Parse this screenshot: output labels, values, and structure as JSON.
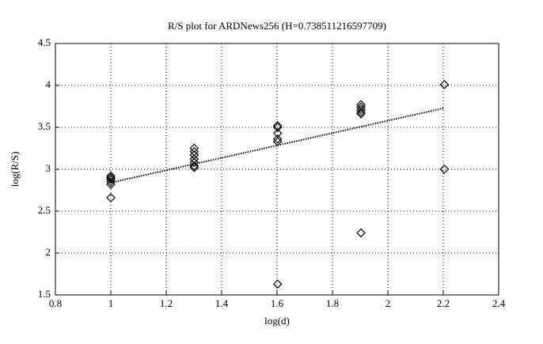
{
  "chart_data": {
    "type": "scatter",
    "title": "R/S plot for ARDNews256 (H=0.738511216597709)",
    "x_label": "log(d)",
    "y_label": "log(R/S)",
    "xlim": [
      0.8,
      2.4
    ],
    "xticks": [
      0.8,
      1,
      1.2,
      1.4,
      1.6,
      1.8,
      2,
      2.2,
      2.4
    ],
    "ylim": [
      1.5,
      4.5
    ],
    "yticks": [
      1.5,
      2,
      2.5,
      3,
      3.5,
      4,
      4.5
    ],
    "grid": true,
    "series": [
      {
        "type": "scatter",
        "color": "#000000",
        "x": [
          1,
          1,
          1,
          1,
          1,
          1,
          1.301,
          1.301,
          1.301,
          1.301,
          1.301,
          1.301,
          1.301,
          1.602,
          1.602,
          1.602,
          1.602,
          1.602,
          1.602,
          1.903,
          1.903,
          1.903,
          1.903,
          1.903,
          1.903,
          2.204,
          2.204
        ],
        "values": [
          2.92,
          2.9,
          2.88,
          2.85,
          2.82,
          2.66,
          3.25,
          3.21,
          3.17,
          3.12,
          3.08,
          3.04,
          3.02,
          3.52,
          3.5,
          3.43,
          3.36,
          3.33,
          1.63,
          3.77,
          3.74,
          3.71,
          3.68,
          3.66,
          2.24,
          4.01,
          3.0
        ]
      },
      {
        "type": "line",
        "color": "#000000",
        "x": [
          1,
          2.204
        ],
        "values": [
          2.84,
          3.73
        ]
      }
    ]
  }
}
